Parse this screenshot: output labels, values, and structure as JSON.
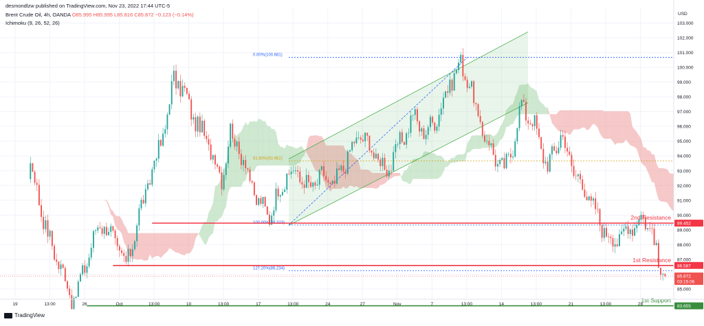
{
  "header": {
    "publisher": "desmondlzw published on TradingView.com, Nov 23, 2022 17:44 UTC-5",
    "symbol": "Brent Crude Oil, 4h, OANDA",
    "ohlc": "O85.995 H85.995 L85.816 C85.872 −0.123 (−0.14%)",
    "indicator": "Ichimoku (9, 26, 52, 26)"
  },
  "brand": "TradingView",
  "colors": {
    "up": "#26a69a",
    "down": "#ef5350",
    "resistance": "#f23645",
    "support": "#388e3c",
    "fib": "#2962ff",
    "fib_mid": "#d4a017",
    "kumo_bull": "#a5d6a7",
    "kumo_bear": "#ef9a9a",
    "channel": "#4caf50"
  },
  "chart_data": {
    "type": "candlestick",
    "currency": "USD",
    "ylim": [
      84.3,
      104.0
    ],
    "y_ticks": [
      "85.000",
      "86.000",
      "87.000",
      "88.000",
      "89.000",
      "90.000",
      "91.000",
      "92.000",
      "93.000",
      "94.000",
      "95.000",
      "96.000",
      "97.000",
      "98.000",
      "99.000",
      "100.000",
      "101.000",
      "102.000",
      "103.000"
    ],
    "x_ticks": [
      "19",
      "13:00",
      "26",
      "Oct",
      "13:00",
      "10",
      "13:00",
      "17",
      "13:00",
      "24",
      "27",
      "Nov",
      "7",
      "13:00",
      "14",
      "13:00",
      "21",
      "13:00",
      "28"
    ],
    "levels": [
      {
        "name": "2nd Resistance",
        "value": 89.452,
        "label": "89.452"
      },
      {
        "name": "1st Resistance",
        "value": 86.587,
        "label": "86.587"
      },
      {
        "name": "1st Support",
        "value": 83.855,
        "label": "83.855"
      }
    ],
    "fib_levels": [
      {
        "label": "0.00%(100.681)",
        "value": 100.681
      },
      {
        "label": "61.80%(93.662)",
        "value": 93.662
      },
      {
        "label": "100.00%(89.323)",
        "value": 89.323
      },
      {
        "label": "127.20%(86.234)",
        "value": 86.234
      }
    ],
    "other_price_labels": [
      "89.000"
    ],
    "last_price": {
      "value": 85.872,
      "label": "85.872",
      "countdown": "03:15:06"
    },
    "anchors": [
      [
        0,
        92.0
      ],
      [
        8,
        90.8
      ],
      [
        14,
        93.5
      ],
      [
        22,
        88.6
      ],
      [
        28,
        86.4
      ],
      [
        34,
        84.1
      ],
      [
        40,
        87.0
      ],
      [
        46,
        89.6
      ],
      [
        52,
        88.5
      ],
      [
        58,
        86.5
      ],
      [
        64,
        90.0
      ],
      [
        70,
        93.0
      ],
      [
        76,
        96.0
      ],
      [
        80,
        99.3
      ],
      [
        84,
        98.5
      ],
      [
        90,
        96.3
      ],
      [
        96,
        94.8
      ],
      [
        102,
        92.5
      ],
      [
        106,
        95.6
      ],
      [
        112,
        93.8
      ],
      [
        118,
        91.0
      ],
      [
        124,
        90.0
      ],
      [
        130,
        92.2
      ],
      [
        136,
        93.0
      ],
      [
        142,
        91.8
      ],
      [
        148,
        92.6
      ],
      [
        154,
        92.0
      ],
      [
        160,
        94.0
      ],
      [
        166,
        95.5
      ],
      [
        172,
        94.2
      ],
      [
        178,
        93.0
      ],
      [
        184,
        94.8
      ],
      [
        190,
        96.7
      ],
      [
        196,
        95.5
      ],
      [
        202,
        97.0
      ],
      [
        208,
        99.3
      ],
      [
        212,
        100.2
      ],
      [
        216,
        99.0
      ],
      [
        220,
        96.4
      ],
      [
        226,
        94.4
      ],
      [
        232,
        93.0
      ],
      [
        236,
        94.8
      ],
      [
        240,
        97.5
      ],
      [
        246,
        96.0
      ],
      [
        252,
        93.2
      ],
      [
        258,
        95.5
      ],
      [
        264,
        93.0
      ],
      [
        270,
        91.5
      ],
      [
        276,
        89.5
      ],
      [
        282,
        88.2
      ],
      [
        288,
        88.9
      ],
      [
        294,
        89.8
      ],
      [
        300,
        89.2
      ],
      [
        303,
        86.3
      ],
      [
        306,
        85.87
      ]
    ]
  }
}
